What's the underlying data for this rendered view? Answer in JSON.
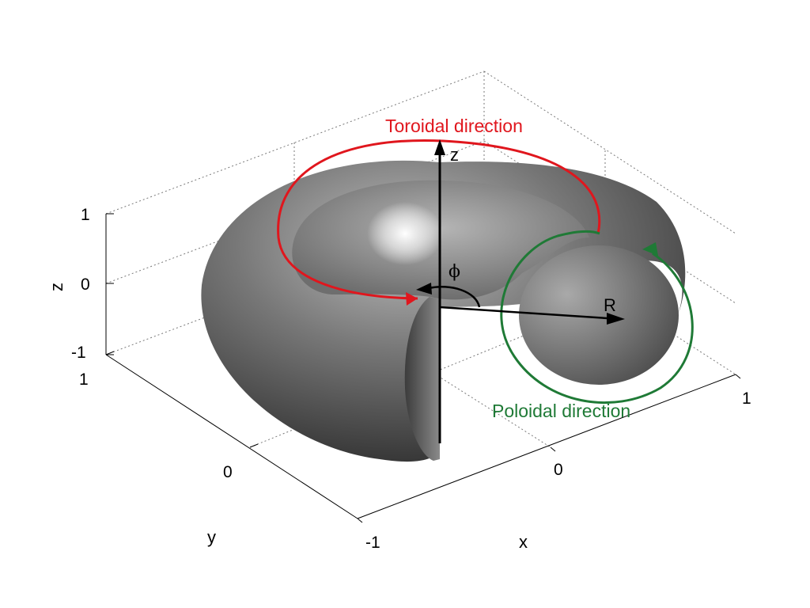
{
  "colors": {
    "toroidal": "#e0161d",
    "poloidal": "#1f7a36",
    "axis": "#000000",
    "background": "#ffffff"
  },
  "axes": {
    "x": {
      "label": "x",
      "ticks": [
        "-1",
        "0",
        "1"
      ]
    },
    "y": {
      "label": "y",
      "ticks": [
        "0",
        "1"
      ]
    },
    "z": {
      "label": "z",
      "ticks": [
        "1",
        "0",
        "-1"
      ]
    }
  },
  "annotations": {
    "toroidal_direction": "Toroidal direction",
    "poloidal_direction": "Poloidal direction",
    "z_axis": "z",
    "phi": "ϕ",
    "radius": "R"
  },
  "surface": {
    "shape": "torus",
    "shading": "gray",
    "cut": "one quarter removed"
  }
}
